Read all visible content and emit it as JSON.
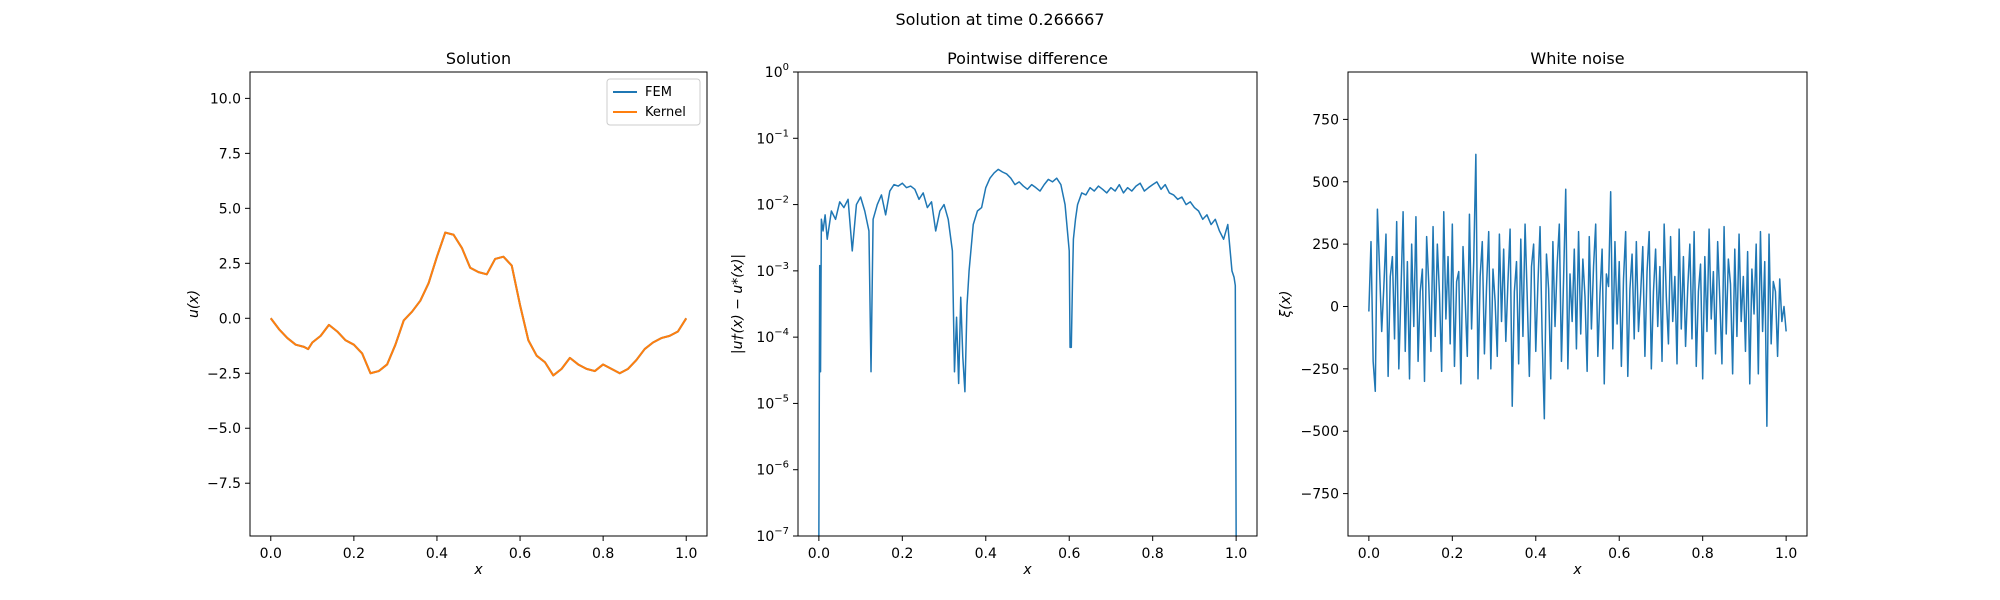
{
  "figure": {
    "suptitle": "Solution at time 0.266667"
  },
  "colors": {
    "fem": "#1f77b4",
    "kernel": "#ff7f0e",
    "noise": "#1f77b4",
    "diff": "#1f77b4"
  },
  "chart_data": [
    {
      "type": "line",
      "title": "Solution",
      "xlabel": "x",
      "ylabel": "u(x)",
      "xlim": [
        -0.05,
        1.05
      ],
      "ylim": [
        -9.9,
        11.2
      ],
      "xticks": [
        0.0,
        0.2,
        0.4,
        0.6,
        0.8,
        1.0
      ],
      "xtick_labels": [
        "0.0",
        "0.2",
        "0.4",
        "0.6",
        "0.8",
        "1.0"
      ],
      "yticks": [
        -7.5,
        -5.0,
        -2.5,
        0.0,
        2.5,
        5.0,
        7.5,
        10.0
      ],
      "ytick_labels": [
        "−7.5",
        "−5.0",
        "−2.5",
        "0.0",
        "2.5",
        "5.0",
        "7.5",
        "10.0"
      ],
      "legend": {
        "position": "upper right",
        "entries": [
          "FEM",
          "Kernel"
        ]
      },
      "series": [
        {
          "name": "FEM",
          "x": [
            0.0,
            0.02,
            0.04,
            0.06,
            0.08,
            0.09,
            0.1,
            0.12,
            0.14,
            0.16,
            0.18,
            0.2,
            0.22,
            0.24,
            0.26,
            0.28,
            0.3,
            0.32,
            0.34,
            0.36,
            0.38,
            0.4,
            0.42,
            0.44,
            0.46,
            0.48,
            0.5,
            0.52,
            0.54,
            0.56,
            0.58,
            0.6,
            0.62,
            0.64,
            0.66,
            0.68,
            0.7,
            0.72,
            0.74,
            0.76,
            0.78,
            0.8,
            0.82,
            0.84,
            0.86,
            0.88,
            0.9,
            0.92,
            0.94,
            0.96,
            0.98,
            1.0
          ],
          "y": [
            0.0,
            -0.5,
            -0.9,
            -1.2,
            -1.3,
            -1.4,
            -1.1,
            -0.8,
            -0.3,
            -0.6,
            -1.0,
            -1.2,
            -1.6,
            -2.5,
            -2.4,
            -2.1,
            -1.2,
            -0.1,
            0.3,
            0.8,
            1.6,
            2.8,
            3.9,
            3.8,
            3.2,
            2.3,
            2.1,
            2.0,
            2.7,
            2.8,
            2.4,
            0.6,
            -1.0,
            -1.7,
            -2.0,
            -2.6,
            -2.3,
            -1.8,
            -2.1,
            -2.3,
            -2.4,
            -2.1,
            -2.3,
            -2.5,
            -2.3,
            -1.9,
            -1.4,
            -1.1,
            -0.9,
            -0.8,
            -0.6,
            0.0
          ]
        },
        {
          "name": "Kernel",
          "x": [
            0.0,
            0.02,
            0.04,
            0.06,
            0.08,
            0.09,
            0.1,
            0.12,
            0.14,
            0.16,
            0.18,
            0.2,
            0.22,
            0.24,
            0.26,
            0.28,
            0.3,
            0.32,
            0.34,
            0.36,
            0.38,
            0.4,
            0.42,
            0.44,
            0.46,
            0.48,
            0.5,
            0.52,
            0.54,
            0.56,
            0.58,
            0.6,
            0.62,
            0.64,
            0.66,
            0.68,
            0.7,
            0.72,
            0.74,
            0.76,
            0.78,
            0.8,
            0.82,
            0.84,
            0.86,
            0.88,
            0.9,
            0.92,
            0.94,
            0.96,
            0.98,
            1.0
          ],
          "y": [
            0.0,
            -0.5,
            -0.9,
            -1.2,
            -1.3,
            -1.4,
            -1.1,
            -0.8,
            -0.3,
            -0.6,
            -1.0,
            -1.2,
            -1.6,
            -2.5,
            -2.4,
            -2.1,
            -1.2,
            -0.1,
            0.3,
            0.8,
            1.6,
            2.8,
            3.9,
            3.8,
            3.2,
            2.3,
            2.1,
            2.0,
            2.7,
            2.8,
            2.4,
            0.6,
            -1.0,
            -1.7,
            -2.0,
            -2.6,
            -2.3,
            -1.8,
            -2.1,
            -2.3,
            -2.4,
            -2.1,
            -2.3,
            -2.5,
            -2.3,
            -1.9,
            -1.4,
            -1.1,
            -0.9,
            -0.8,
            -0.6,
            0.0
          ]
        }
      ]
    },
    {
      "type": "line",
      "title": "Pointwise difference",
      "xlabel": "x",
      "ylabel": "|u†(x) − u*(x)|",
      "yscale": "log",
      "xlim": [
        -0.05,
        1.05
      ],
      "ylim": [
        1e-07,
        1.0
      ],
      "xticks": [
        0.0,
        0.2,
        0.4,
        0.6,
        0.8,
        1.0
      ],
      "xtick_labels": [
        "0.0",
        "0.2",
        "0.4",
        "0.6",
        "0.8",
        "1.0"
      ],
      "yticks": [
        1e-07,
        1e-06,
        1e-05,
        0.0001,
        0.001,
        0.01,
        0.1,
        1.0
      ],
      "ytick_labels": [
        "10^-7",
        "10^-6",
        "10^-5",
        "10^-4",
        "10^-3",
        "10^-2",
        "10^-1",
        "10^0"
      ],
      "series": [
        {
          "x": [
            0.0,
            0.002,
            0.004,
            0.006,
            0.01,
            0.015,
            0.02,
            0.03,
            0.04,
            0.05,
            0.06,
            0.07,
            0.08,
            0.09,
            0.1,
            0.11,
            0.12,
            0.125,
            0.13,
            0.14,
            0.15,
            0.16,
            0.17,
            0.18,
            0.19,
            0.2,
            0.21,
            0.22,
            0.23,
            0.24,
            0.25,
            0.26,
            0.27,
            0.28,
            0.29,
            0.3,
            0.31,
            0.32,
            0.325,
            0.33,
            0.335,
            0.34,
            0.345,
            0.35,
            0.355,
            0.36,
            0.37,
            0.38,
            0.39,
            0.4,
            0.41,
            0.42,
            0.43,
            0.44,
            0.45,
            0.46,
            0.47,
            0.48,
            0.49,
            0.5,
            0.51,
            0.52,
            0.53,
            0.54,
            0.55,
            0.56,
            0.57,
            0.58,
            0.59,
            0.6,
            0.602,
            0.605,
            0.608,
            0.61,
            0.615,
            0.62,
            0.63,
            0.64,
            0.65,
            0.66,
            0.67,
            0.68,
            0.69,
            0.7,
            0.71,
            0.72,
            0.73,
            0.74,
            0.75,
            0.76,
            0.77,
            0.78,
            0.79,
            0.8,
            0.81,
            0.82,
            0.83,
            0.84,
            0.85,
            0.86,
            0.87,
            0.88,
            0.89,
            0.9,
            0.91,
            0.92,
            0.93,
            0.94,
            0.95,
            0.96,
            0.97,
            0.98,
            0.99,
            0.995,
            0.998,
            1.0
          ],
          "y": [
            1e-07,
            0.0012,
            3e-05,
            0.006,
            0.004,
            0.007,
            0.003,
            0.008,
            0.006,
            0.011,
            0.009,
            0.012,
            0.002,
            0.01,
            0.013,
            0.008,
            0.004,
            3e-05,
            0.006,
            0.01,
            0.014,
            0.007,
            0.016,
            0.02,
            0.019,
            0.021,
            0.018,
            0.019,
            0.017,
            0.012,
            0.015,
            0.009,
            0.011,
            0.004,
            0.008,
            0.01,
            0.006,
            0.002,
            3e-05,
            0.0002,
            2e-05,
            0.0004,
            5e-05,
            1.5e-05,
            0.0003,
            0.001,
            0.005,
            0.008,
            0.009,
            0.018,
            0.025,
            0.03,
            0.034,
            0.031,
            0.029,
            0.025,
            0.02,
            0.022,
            0.019,
            0.017,
            0.02,
            0.018,
            0.016,
            0.02,
            0.024,
            0.022,
            0.025,
            0.02,
            0.01,
            0.002,
            7e-05,
            7e-05,
            0.0008,
            0.003,
            0.006,
            0.01,
            0.015,
            0.014,
            0.018,
            0.016,
            0.019,
            0.017,
            0.015,
            0.018,
            0.016,
            0.02,
            0.015,
            0.018,
            0.016,
            0.019,
            0.021,
            0.016,
            0.018,
            0.02,
            0.022,
            0.017,
            0.02,
            0.015,
            0.014,
            0.012,
            0.013,
            0.01,
            0.011,
            0.009,
            0.008,
            0.006,
            0.007,
            0.005,
            0.006,
            0.004,
            0.003,
            0.005,
            0.001,
            0.0008,
            0.0006,
            1e-07
          ]
        }
      ]
    },
    {
      "type": "line",
      "title": "White noise",
      "xlabel": "x",
      "ylabel": "ξ(x)",
      "xlim": [
        -0.05,
        1.05
      ],
      "ylim": [
        -920,
        940
      ],
      "xticks": [
        0.0,
        0.2,
        0.4,
        0.6,
        0.8,
        1.0
      ],
      "xtick_labels": [
        "0.0",
        "0.2",
        "0.4",
        "0.6",
        "0.8",
        "1.0"
      ],
      "yticks": [
        -750,
        -500,
        -250,
        0,
        250,
        500,
        750
      ],
      "ytick_labels": [
        "−750",
        "−500",
        "−250",
        "0",
        "250",
        "500",
        "750"
      ],
      "series": [
        {
          "x_range": [
            0.0,
            1.0
          ],
          "y": [
            -20,
            260,
            -220,
            -340,
            390,
            150,
            -100,
            80,
            290,
            -280,
            120,
            200,
            -130,
            340,
            -250,
            60,
            380,
            -180,
            180,
            -290,
            250,
            -80,
            360,
            -220,
            60,
            150,
            -300,
            280,
            90,
            -180,
            320,
            -120,
            250,
            50,
            -260,
            380,
            -50,
            200,
            -150,
            330,
            -240,
            100,
            140,
            -310,
            240,
            30,
            -200,
            370,
            -90,
            180,
            610,
            -290,
            120,
            260,
            -190,
            80,
            300,
            -250,
            150,
            20,
            -200,
            290,
            -60,
            230,
            -140,
            100,
            310,
            -400,
            60,
            180,
            -230,
            270,
            -120,
            330,
            40,
            -280,
            160,
            250,
            -180,
            90,
            320,
            -130,
            -450,
            210,
            70,
            -290,
            260,
            -80,
            170,
            330,
            -220,
            110,
            470,
            -250,
            130,
            -60,
            230,
            -170,
            300,
            -110,
            190,
            40,
            -260,
            280,
            -90,
            160,
            330,
            -200,
            50,
            230,
            -310,
            130,
            80,
            460,
            -170,
            260,
            -70,
            180,
            -240,
            110,
            300,
            -280,
            70,
            210,
            -130,
            260,
            -100,
            50,
            240,
            -200,
            140,
            300,
            -250,
            60,
            230,
            -80,
            160,
            -220,
            330,
            40,
            -150,
            280,
            -60,
            120,
            -230,
            310,
            -90,
            200,
            -160,
            70,
            250,
            -130,
            300,
            -240,
            60,
            170,
            -290,
            200,
            -100,
            310,
            -50,
            140,
            -190,
            260,
            30,
            -230,
            320,
            -110,
            190,
            90,
            -270,
            230,
            -120,
            290,
            -60,
            120,
            -180,
            220,
            -310,
            150,
            -30,
            250,
            -270,
            300,
            -100,
            180,
            -480,
            290,
            -150,
            100,
            60,
            -200,
            110,
            -60,
            0,
            -100
          ]
        }
      ]
    }
  ]
}
